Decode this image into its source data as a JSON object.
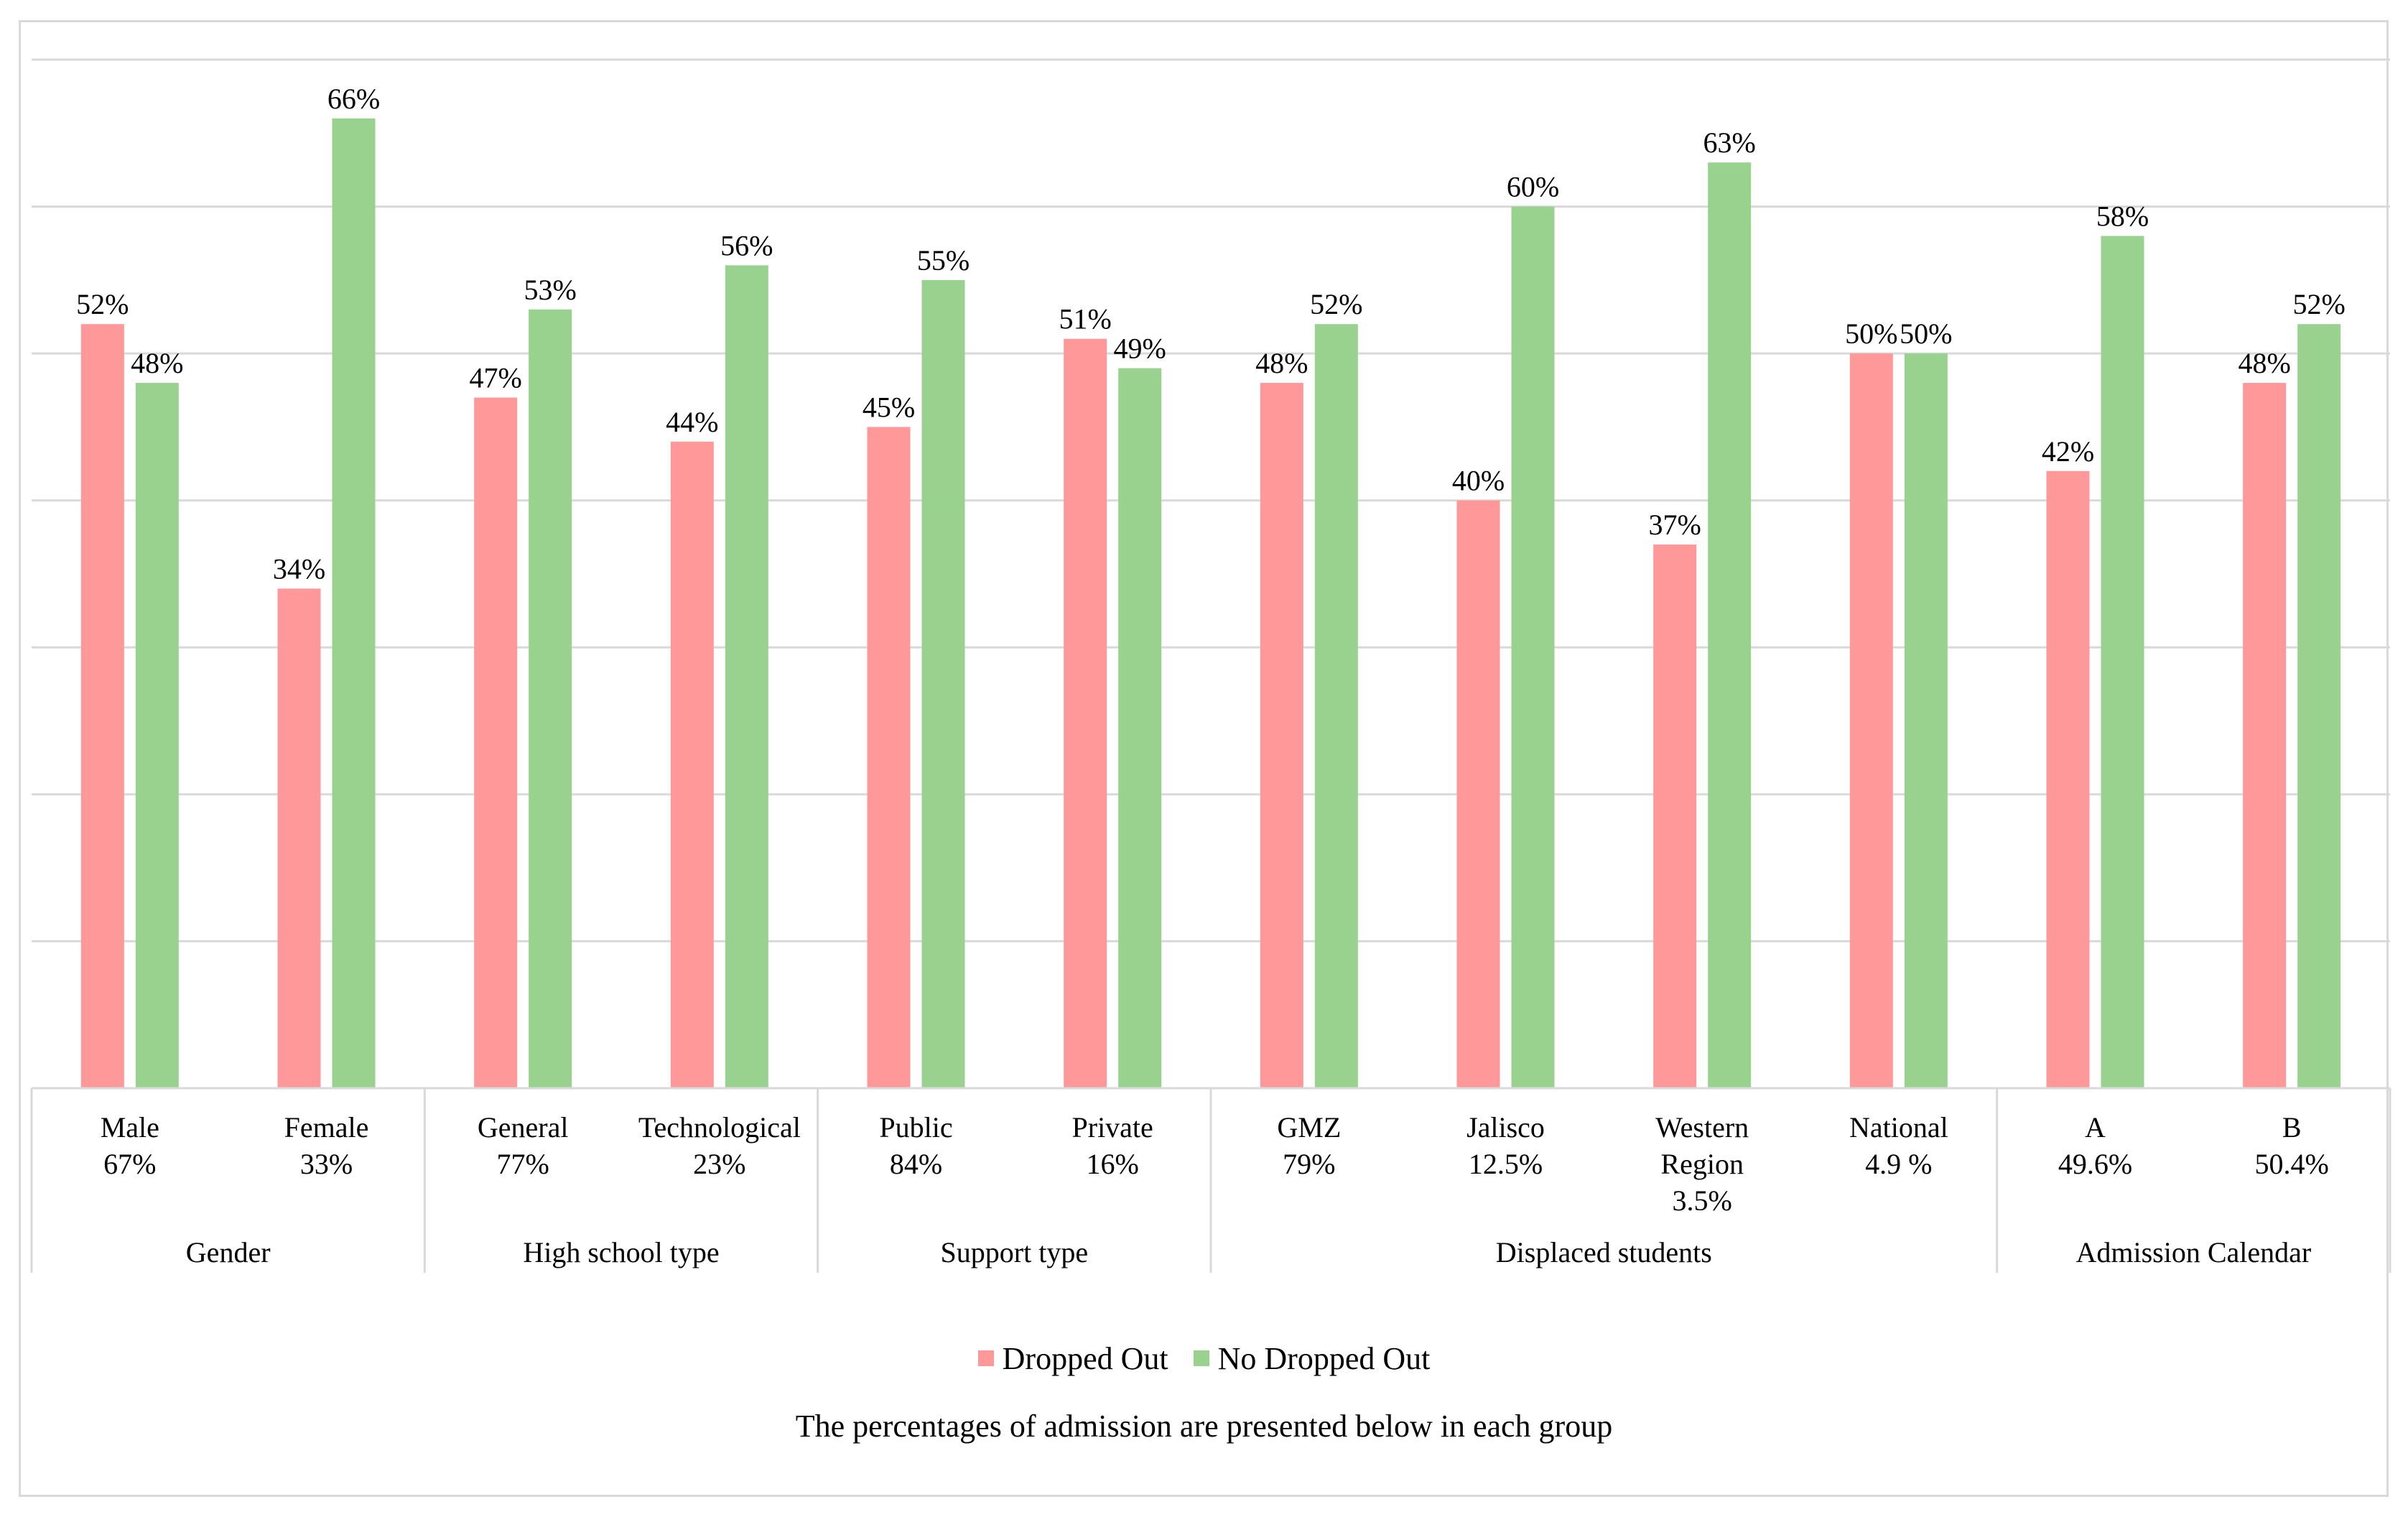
{
  "chart_data": {
    "type": "bar",
    "title": "",
    "xlabel": "",
    "ylabel": "",
    "ylim": [
      0,
      70
    ],
    "grid": true,
    "colors": {
      "Dropped Out": "#ff9999",
      "No Dropped Out": "#99d18f",
      "grid": "#d9d9d9",
      "axis": "#d9d9d9"
    },
    "categories": [
      [
        "Male",
        "67%"
      ],
      [
        "Female",
        "33%"
      ],
      [
        "General",
        "77%"
      ],
      [
        "Technological",
        "23%"
      ],
      [
        "Public",
        "84%"
      ],
      [
        "Private",
        "16%"
      ],
      [
        "GMZ",
        "79%"
      ],
      [
        "Jalisco",
        "12.5%"
      ],
      [
        "Western",
        "Region",
        "3.5%"
      ],
      [
        "National",
        "4.9 %"
      ],
      [
        "A",
        "49.6%"
      ],
      [
        "B",
        "50.4%"
      ]
    ],
    "groups": [
      {
        "name": "Gender",
        "size": 2
      },
      {
        "name": "High school type",
        "size": 2
      },
      {
        "name": "Support type",
        "size": 2
      },
      {
        "name": "Displaced students",
        "size": 4
      },
      {
        "name": "Admission Calendar",
        "size": 2
      }
    ],
    "series": [
      {
        "name": "Dropped Out",
        "values": [
          52,
          34,
          47,
          44,
          45,
          51,
          48,
          40,
          37,
          50,
          42,
          48
        ],
        "labels": [
          "52%",
          "34%",
          "47%",
          "44%",
          "45%",
          "51%",
          "48%",
          "40%",
          "37%",
          "50%",
          "42%",
          "48%"
        ]
      },
      {
        "name": "No Dropped Out",
        "values": [
          48,
          66,
          53,
          56,
          55,
          49,
          52,
          60,
          63,
          50,
          58,
          52
        ],
        "labels": [
          "48%",
          "66%",
          "53%",
          "56%",
          "55%",
          "49%",
          "52%",
          "60%",
          "63%",
          "50%",
          "58%",
          "52%"
        ]
      }
    ],
    "legend_position": "bottom",
    "note": "The percentages of admission are presented below in each group"
  }
}
